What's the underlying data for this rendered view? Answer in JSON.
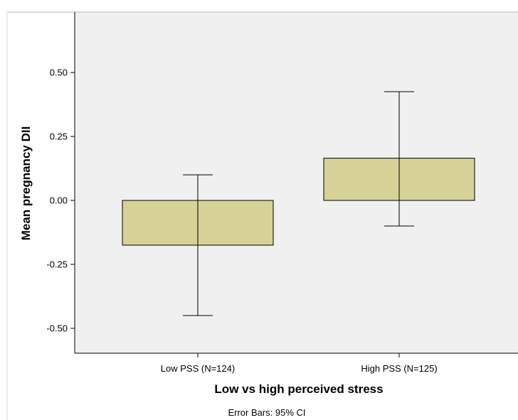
{
  "chart_data": {
    "type": "bar",
    "title": "",
    "xlabel": "Low vs high perceived stress",
    "ylabel": "Mean pregnancy DII",
    "categories": [
      "Low PSS (N=124)",
      "High PSS (N=125)"
    ],
    "values": [
      -0.175,
      0.165
    ],
    "error_bars": {
      "lower": [
        -0.45,
        -0.1
      ],
      "upper": [
        0.1,
        0.425
      ]
    },
    "ylim": [
      -0.6,
      0.75
    ],
    "yticks": [
      0.5,
      0.25,
      0.0,
      -0.25,
      -0.5
    ],
    "ytick_labels": [
      "0.50",
      "0.25",
      "0.00",
      "-0.25",
      "-0.50"
    ],
    "grid": false,
    "legend": "none",
    "footnote": "Error Bars: 95% CI",
    "colors": {
      "bar_fill": "#d6d197",
      "bar_stroke": "#000000",
      "plot_background": "#f0f0f0",
      "error_bar": "#000000"
    }
  }
}
